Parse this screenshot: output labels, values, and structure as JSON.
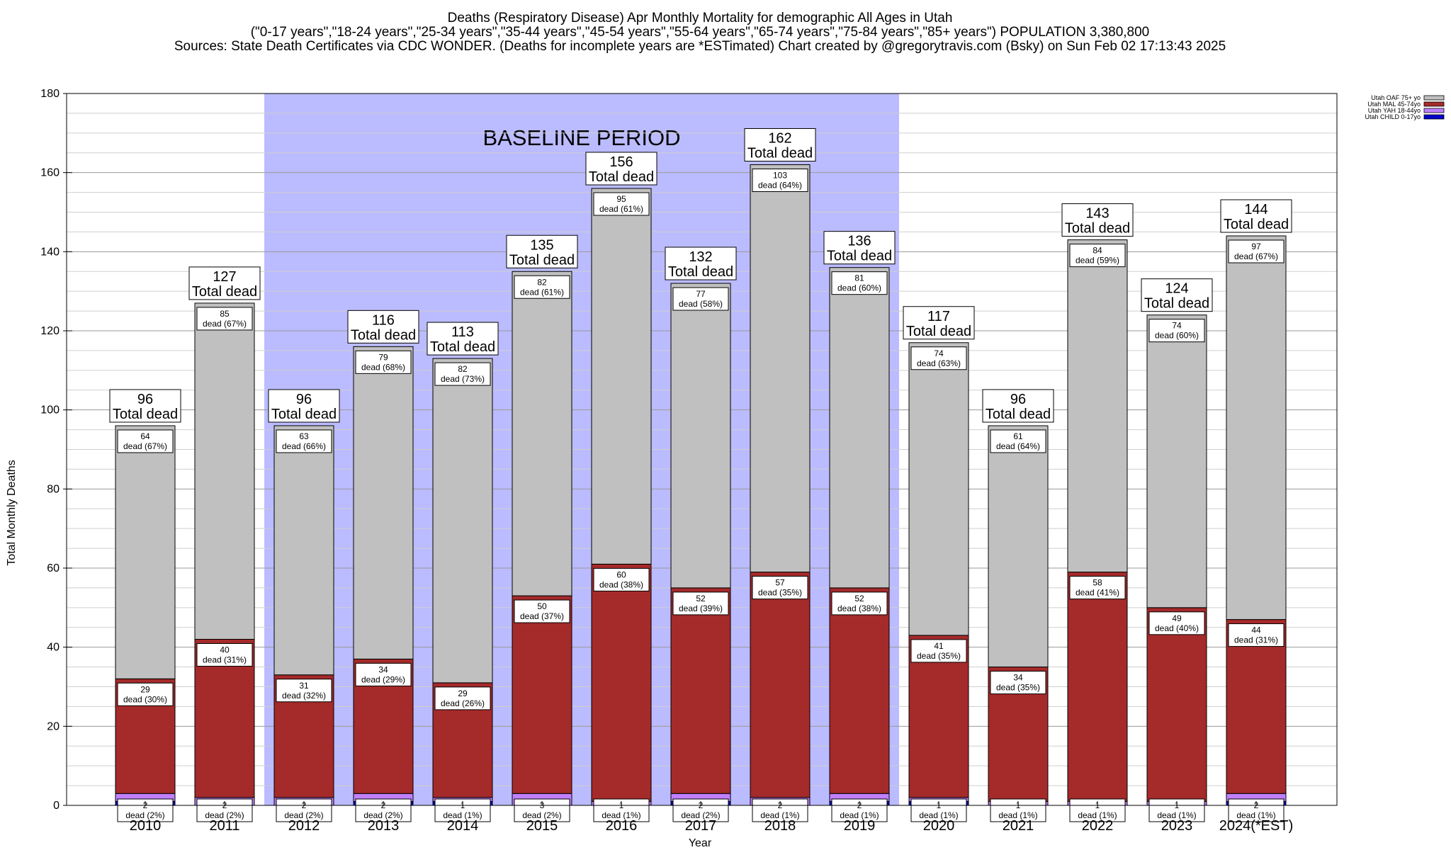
{
  "title_lines": [
    "Deaths (Respiratory Disease) Apr Monthly Mortality for demographic All Ages in Utah",
    "(\"0-17 years\",\"18-24 years\",\"25-34 years\",\"35-44 years\",\"45-54 years\",\"55-64 years\",\"65-74 years\",\"75-84 years\",\"85+ years\") POPULATION 3,380,800",
    "Sources: State Death Certificates via CDC WONDER. (Deaths for incomplete years are *ESTimated)               Chart created by @gregorytravis.com (Bsky) on Sun Feb 02 17:13:43 2025"
  ],
  "chart_data": {
    "type": "bar",
    "stacked": true,
    "xlabel": "Year",
    "ylabel": "Total Monthly Deaths",
    "ylim": [
      0,
      180
    ],
    "y_ticks": [
      0,
      20,
      40,
      60,
      80,
      100,
      120,
      140,
      160,
      180
    ],
    "grid": true,
    "legend_position": "top-right",
    "categories": [
      "2010",
      "2011",
      "2012",
      "2013",
      "2014",
      "2015",
      "2016",
      "2017",
      "2018",
      "2019",
      "2020",
      "2021",
      "2022",
      "2023",
      "2024(*EST)"
    ],
    "series": [
      {
        "name": "Utah CHILD 0-17yo",
        "color": "#0000cc",
        "values": [
          1,
          0,
          0,
          1,
          1,
          0,
          0,
          1,
          0,
          1,
          1,
          0,
          0,
          0,
          1
        ]
      },
      {
        "name": "Utah YAH 18-44yo",
        "color": "#c080ff",
        "values": [
          2,
          2,
          2,
          2,
          1,
          3,
          1,
          2,
          2,
          2,
          1,
          1,
          1,
          1,
          2
        ]
      },
      {
        "name": "Utah MAL 45-74yo",
        "color": "#a52a2a",
        "values": [
          29,
          40,
          31,
          34,
          29,
          50,
          60,
          52,
          57,
          52,
          41,
          34,
          58,
          49,
          44
        ]
      },
      {
        "name": "Utah OAF 75+ yo",
        "color": "#c0c0c0",
        "values": [
          64,
          85,
          63,
          79,
          82,
          82,
          95,
          77,
          103,
          81,
          74,
          61,
          84,
          74,
          97
        ]
      }
    ],
    "totals": [
      96,
      127,
      96,
      116,
      113,
      135,
      156,
      132,
      162,
      136,
      117,
      96,
      143,
      124,
      144
    ],
    "segment_labels": {
      "Utah YAH 18-44yo": [
        "2",
        "2",
        "2",
        "2",
        "1",
        "3",
        "1",
        "2",
        "2",
        "2",
        "1",
        "1",
        "1",
        "1",
        "2"
      ],
      "Utah MAL 45-74yo": [
        "29",
        "40",
        "31",
        "34",
        "29",
        "50",
        "60",
        "52",
        "57",
        "52",
        "41",
        "34",
        "58",
        "49",
        "44"
      ],
      "Utah OAF 75+ yo": [
        "64",
        "85",
        "63",
        "79",
        "82",
        "82",
        "95",
        "77",
        "103",
        "81",
        "74",
        "61",
        "84",
        "74",
        "97"
      ]
    },
    "segment_pct_labels": {
      "Utah YAH 18-44yo": [
        "dead (2%)",
        "dead (2%)",
        "dead (2%)",
        "dead (2%)",
        "dead (1%)",
        "dead (2%)",
        "dead (1%)",
        "dead (2%)",
        "dead (1%)",
        "dead (1%)",
        "dead (1%)",
        "dead (1%)",
        "dead (1%)",
        "dead (1%)",
        "dead (1%)"
      ],
      "Utah MAL 45-74yo": [
        "dead (30%)",
        "dead (31%)",
        "dead (32%)",
        "dead (29%)",
        "dead (26%)",
        "dead (37%)",
        "dead (38%)",
        "dead (39%)",
        "dead (35%)",
        "dead (38%)",
        "dead (35%)",
        "dead (35%)",
        "dead (41%)",
        "dead (40%)",
        "dead (31%)"
      ],
      "Utah OAF 75+ yo": [
        "dead (67%)",
        "dead (67%)",
        "dead (66%)",
        "dead (68%)",
        "dead (73%)",
        "dead (61%)",
        "dead (61%)",
        "dead (58%)",
        "dead (64%)",
        "dead (60%)",
        "dead (63%)",
        "dead (64%)",
        "dead (59%)",
        "dead (60%)",
        "dead (67%)"
      ]
    },
    "total_label": "Total dead",
    "annotation": {
      "text": "BASELINE PERIOD",
      "from_category": "2012",
      "to_category": "2019",
      "color": "#bbbbff"
    }
  }
}
